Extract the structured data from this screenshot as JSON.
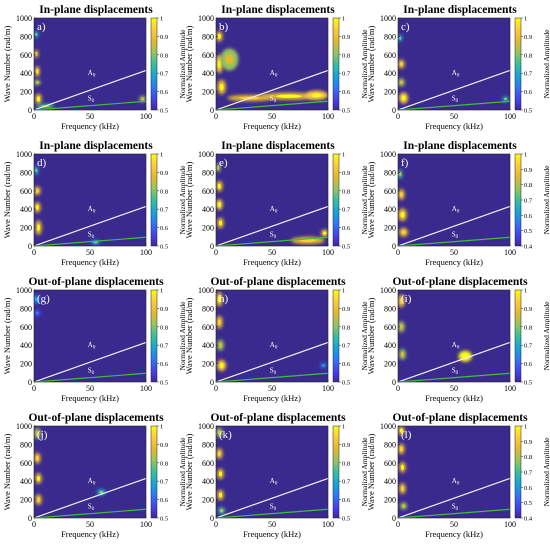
{
  "colors": {
    "background": "#3b2a8e",
    "a0_curve": "#f0f0f0",
    "s0_curve": "#3fbf3f",
    "colormap": [
      "#3e26a8",
      "#4546e8",
      "#2e79f4",
      "#14a7d8",
      "#3bbf9c",
      "#97c45c",
      "#e3b830",
      "#fccb3a",
      "#f9fb15"
    ]
  },
  "shared": {
    "xlabel": "Frequency (kHz)",
    "ylabel": "Wave Number (rad/m)",
    "colorbar_label": "Normalized Amplitude",
    "x_ticks": [
      "0",
      "50",
      "100"
    ],
    "y_ticks": [
      "0",
      "200",
      "400",
      "600",
      "800",
      "1000"
    ],
    "a0_label": "A",
    "a0_sub": "0",
    "s0_label": "S",
    "s0_sub": "0"
  },
  "chart_data": [
    {
      "type": "heatmap",
      "panel": "a)",
      "title": "In-plane displacements",
      "xlim": [
        0,
        100
      ],
      "ylim": [
        0,
        1000
      ],
      "colorbar_ticks": [
        "0.5",
        "0.6",
        "0.7",
        "0.8",
        "0.9",
        "1"
      ],
      "a0_curve": {
        "x": [
          0,
          100
        ],
        "y": [
          0,
          430
        ]
      },
      "s0_curve": {
        "x": [
          0,
          100
        ],
        "y": [
          0,
          95
        ]
      },
      "blobs": [
        {
          "x": 2,
          "y": 820,
          "w": 2,
          "h": 40,
          "v": 0.7
        },
        {
          "x": 2,
          "y": 610,
          "w": 2,
          "h": 45,
          "v": 0.85
        },
        {
          "x": 3,
          "y": 420,
          "w": 2,
          "h": 60,
          "v": 0.95
        },
        {
          "x": 3,
          "y": 300,
          "w": 3,
          "h": 30,
          "v": 0.8
        },
        {
          "x": 4,
          "y": 120,
          "w": 3,
          "h": 60,
          "v": 0.9
        },
        {
          "x": 10,
          "y": 40,
          "w": 8,
          "h": 25,
          "v": 0.75
        },
        {
          "x": 97,
          "y": 120,
          "w": 3,
          "h": 35,
          "v": 0.8
        }
      ]
    },
    {
      "type": "heatmap",
      "panel": "b)",
      "title": "In-plane displacements",
      "xlim": [
        0,
        100
      ],
      "ylim": [
        0,
        1000
      ],
      "colorbar_ticks": [
        "0.5",
        "0.6",
        "0.7",
        "0.8",
        "0.9",
        "1"
      ],
      "a0_curve": {
        "x": [
          0,
          100
        ],
        "y": [
          0,
          430
        ]
      },
      "s0_curve": {
        "x": [
          0,
          100
        ],
        "y": [
          0,
          95
        ]
      },
      "blobs": [
        {
          "x": 3,
          "y": 800,
          "w": 3,
          "h": 60,
          "v": 0.9
        },
        {
          "x": 3,
          "y": 500,
          "w": 3,
          "h": 100,
          "v": 0.95
        },
        {
          "x": 5,
          "y": 250,
          "w": 4,
          "h": 80,
          "v": 0.9
        },
        {
          "x": 12,
          "y": 550,
          "w": 8,
          "h": 120,
          "v": 0.8
        },
        {
          "x": 30,
          "y": 130,
          "w": 20,
          "h": 35,
          "v": 0.85
        },
        {
          "x": 65,
          "y": 150,
          "w": 25,
          "h": 40,
          "v": 0.9
        },
        {
          "x": 90,
          "y": 160,
          "w": 10,
          "h": 50,
          "v": 0.95
        }
      ]
    },
    {
      "type": "heatmap",
      "panel": "c)",
      "title": "In-plane displacements",
      "xlim": [
        0,
        100
      ],
      "ylim": [
        0,
        1000
      ],
      "colorbar_ticks": [
        "0.5",
        "0.6",
        "0.7",
        "0.8",
        "0.9",
        "1"
      ],
      "a0_curve": {
        "x": [
          0,
          100
        ],
        "y": [
          0,
          430
        ]
      },
      "s0_curve": {
        "x": [
          0,
          100
        ],
        "y": [
          0,
          95
        ]
      },
      "blobs": [
        {
          "x": 2,
          "y": 780,
          "w": 2,
          "h": 40,
          "v": 0.7
        },
        {
          "x": 3,
          "y": 500,
          "w": 3,
          "h": 50,
          "v": 0.85
        },
        {
          "x": 3,
          "y": 300,
          "w": 3,
          "h": 45,
          "v": 0.8
        },
        {
          "x": 5,
          "y": 130,
          "w": 4,
          "h": 60,
          "v": 0.95
        },
        {
          "x": 96,
          "y": 120,
          "w": 3,
          "h": 30,
          "v": 0.7
        }
      ]
    },
    {
      "type": "heatmap",
      "panel": "d)",
      "title": "In-plane displacements",
      "xlim": [
        0,
        100
      ],
      "ylim": [
        0,
        1000
      ],
      "colorbar_ticks": [
        "0.5",
        "0.6",
        "0.7",
        "0.8",
        "0.9",
        "1"
      ],
      "a0_curve": {
        "x": [
          0,
          100
        ],
        "y": [
          0,
          430
        ]
      },
      "s0_curve": {
        "x": [
          0,
          100
        ],
        "y": [
          0,
          95
        ]
      },
      "blobs": [
        {
          "x": 2,
          "y": 820,
          "w": 2,
          "h": 50,
          "v": 0.7
        },
        {
          "x": 3,
          "y": 600,
          "w": 3,
          "h": 50,
          "v": 0.85
        },
        {
          "x": 3,
          "y": 420,
          "w": 3,
          "h": 60,
          "v": 0.9
        },
        {
          "x": 4,
          "y": 200,
          "w": 3,
          "h": 80,
          "v": 0.9
        },
        {
          "x": 55,
          "y": 40,
          "w": 4,
          "h": 25,
          "v": 0.7
        }
      ]
    },
    {
      "type": "heatmap",
      "panel": "e)",
      "title": "In-plane displacements",
      "xlim": [
        0,
        100
      ],
      "ylim": [
        0,
        1000
      ],
      "colorbar_ticks": [
        "0.5",
        "0.6",
        "0.7",
        "0.8",
        "0.9",
        "1"
      ],
      "a0_curve": {
        "x": [
          0,
          100
        ],
        "y": [
          0,
          430
        ]
      },
      "s0_curve": {
        "x": [
          0,
          100
        ],
        "y": [
          0,
          95
        ]
      },
      "blobs": [
        {
          "x": 2,
          "y": 850,
          "w": 2,
          "h": 50,
          "v": 0.8
        },
        {
          "x": 3,
          "y": 650,
          "w": 3,
          "h": 60,
          "v": 0.9
        },
        {
          "x": 3,
          "y": 450,
          "w": 3,
          "h": 60,
          "v": 0.95
        },
        {
          "x": 4,
          "y": 250,
          "w": 3,
          "h": 60,
          "v": 0.9
        },
        {
          "x": 82,
          "y": 60,
          "w": 15,
          "h": 40,
          "v": 0.85
        },
        {
          "x": 97,
          "y": 140,
          "w": 3,
          "h": 40,
          "v": 0.95
        }
      ]
    },
    {
      "type": "heatmap",
      "panel": "f)",
      "title": "In-plane displacements",
      "xlim": [
        0,
        100
      ],
      "ylim": [
        0,
        1000
      ],
      "colorbar_ticks": [
        "0.4",
        "0.5",
        "0.6",
        "0.7",
        "0.8",
        "0.9",
        "1"
      ],
      "a0_curve": {
        "x": [
          0,
          100
        ],
        "y": [
          0,
          430
        ]
      },
      "s0_curve": {
        "x": [
          0,
          100
        ],
        "y": [
          0,
          95
        ]
      },
      "blobs": [
        {
          "x": 2,
          "y": 780,
          "w": 2,
          "h": 50,
          "v": 0.75
        },
        {
          "x": 3,
          "y": 560,
          "w": 3,
          "h": 60,
          "v": 0.85
        },
        {
          "x": 4,
          "y": 340,
          "w": 4,
          "h": 70,
          "v": 0.9
        },
        {
          "x": 5,
          "y": 150,
          "w": 4,
          "h": 50,
          "v": 0.85
        }
      ]
    },
    {
      "type": "heatmap",
      "panel": "(g)",
      "title": "Out-of-plane displacements",
      "xlim": [
        0,
        100
      ],
      "ylim": [
        0,
        1000
      ],
      "colorbar_ticks": [
        "0.5",
        "0.6",
        "0.7",
        "0.8",
        "0.9",
        "1"
      ],
      "a0_curve": {
        "x": [
          0,
          100
        ],
        "y": [
          0,
          430
        ]
      },
      "s0_curve": {
        "x": [
          0,
          100
        ],
        "y": [
          0,
          95
        ]
      },
      "blobs": [
        {
          "x": 2,
          "y": 900,
          "w": 3,
          "h": 50,
          "v": 0.6
        },
        {
          "x": 3,
          "y": 750,
          "w": 3,
          "h": 40,
          "v": 0.55
        }
      ]
    },
    {
      "type": "heatmap",
      "panel": "h)",
      "title": "Out-of-plane displacements",
      "xlim": [
        0,
        100
      ],
      "ylim": [
        0,
        1000
      ],
      "colorbar_ticks": [
        "0.5",
        "0.6",
        "0.7",
        "0.8",
        "0.9",
        "1"
      ],
      "a0_curve": {
        "x": [
          0,
          100
        ],
        "y": [
          0,
          430
        ]
      },
      "s0_curve": {
        "x": [
          0,
          100
        ],
        "y": [
          0,
          95
        ]
      },
      "blobs": [
        {
          "x": 3,
          "y": 900,
          "w": 3,
          "h": 80,
          "v": 0.9
        },
        {
          "x": 3,
          "y": 650,
          "w": 3,
          "h": 70,
          "v": 0.85
        },
        {
          "x": 4,
          "y": 400,
          "w": 3,
          "h": 60,
          "v": 0.8
        },
        {
          "x": 5,
          "y": 180,
          "w": 4,
          "h": 60,
          "v": 0.95
        },
        {
          "x": 96,
          "y": 180,
          "w": 3,
          "h": 25,
          "v": 0.6
        }
      ]
    },
    {
      "type": "heatmap",
      "panel": "(i)",
      "title": "Out-of-plane displacements",
      "xlim": [
        0,
        100
      ],
      "ylim": [
        0,
        1000
      ],
      "colorbar_ticks": [
        "0.5",
        "0.6",
        "0.7",
        "0.8",
        "0.9",
        "1"
      ],
      "a0_curve": {
        "x": [
          0,
          100
        ],
        "y": [
          0,
          430
        ]
      },
      "s0_curve": {
        "x": [
          0,
          100
        ],
        "y": [
          0,
          95
        ]
      },
      "blobs": [
        {
          "x": 3,
          "y": 880,
          "w": 3,
          "h": 70,
          "v": 0.85
        },
        {
          "x": 3,
          "y": 600,
          "w": 3,
          "h": 60,
          "v": 0.8
        },
        {
          "x": 4,
          "y": 300,
          "w": 3,
          "h": 60,
          "v": 0.8
        },
        {
          "x": 60,
          "y": 280,
          "w": 6,
          "h": 60,
          "v": 1.0
        }
      ]
    },
    {
      "type": "heatmap",
      "panel": "(j)",
      "title": "Out-of-plane displacements",
      "xlim": [
        0,
        100
      ],
      "ylim": [
        0,
        1000
      ],
      "colorbar_ticks": [
        "0.5",
        "0.6",
        "0.7",
        "0.8",
        "0.9",
        "1"
      ],
      "a0_curve": {
        "x": [
          0,
          100
        ],
        "y": [
          0,
          430
        ]
      },
      "s0_curve": {
        "x": [
          0,
          100
        ],
        "y": [
          0,
          95
        ]
      },
      "blobs": [
        {
          "x": 3,
          "y": 920,
          "w": 3,
          "h": 60,
          "v": 0.8
        },
        {
          "x": 3,
          "y": 650,
          "w": 3,
          "h": 60,
          "v": 0.85
        },
        {
          "x": 4,
          "y": 430,
          "w": 3,
          "h": 60,
          "v": 0.9
        },
        {
          "x": 4,
          "y": 200,
          "w": 3,
          "h": 60,
          "v": 0.85
        },
        {
          "x": 60,
          "y": 280,
          "w": 4,
          "h": 35,
          "v": 0.7
        }
      ]
    },
    {
      "type": "heatmap",
      "panel": "(k)",
      "title": "Out-of-plane displacements",
      "xlim": [
        0,
        100
      ],
      "ylim": [
        0,
        1000
      ],
      "colorbar_ticks": [
        "0.5",
        "0.6",
        "0.7",
        "0.8",
        "0.9",
        "1"
      ],
      "a0_curve": {
        "x": [
          0,
          100
        ],
        "y": [
          0,
          430
        ]
      },
      "s0_curve": {
        "x": [
          0,
          100
        ],
        "y": [
          0,
          95
        ]
      },
      "blobs": [
        {
          "x": 3,
          "y": 930,
          "w": 3,
          "h": 50,
          "v": 0.8
        },
        {
          "x": 3,
          "y": 700,
          "w": 3,
          "h": 60,
          "v": 0.85
        },
        {
          "x": 4,
          "y": 480,
          "w": 3,
          "h": 60,
          "v": 0.9
        },
        {
          "x": 4,
          "y": 250,
          "w": 3,
          "h": 60,
          "v": 0.9
        },
        {
          "x": 5,
          "y": 80,
          "w": 3,
          "h": 40,
          "v": 0.75
        }
      ]
    },
    {
      "type": "heatmap",
      "panel": "(l)",
      "title": "Out-of-plane displacements",
      "xlim": [
        0,
        100
      ],
      "ylim": [
        0,
        1000
      ],
      "colorbar_ticks": [
        "0.4",
        "0.5",
        "0.6",
        "0.7",
        "0.8",
        "0.9",
        "1"
      ],
      "a0_curve": {
        "x": [
          0,
          100
        ],
        "y": [
          0,
          430
        ]
      },
      "s0_curve": {
        "x": [
          0,
          100
        ],
        "y": [
          0,
          95
        ]
      },
      "blobs": [
        {
          "x": 3,
          "y": 950,
          "w": 3,
          "h": 50,
          "v": 0.9
        },
        {
          "x": 3,
          "y": 750,
          "w": 3,
          "h": 60,
          "v": 0.85
        },
        {
          "x": 4,
          "y": 550,
          "w": 3,
          "h": 60,
          "v": 0.9
        },
        {
          "x": 4,
          "y": 320,
          "w": 3,
          "h": 60,
          "v": 0.85
        },
        {
          "x": 5,
          "y": 130,
          "w": 3,
          "h": 40,
          "v": 0.8
        }
      ]
    }
  ]
}
